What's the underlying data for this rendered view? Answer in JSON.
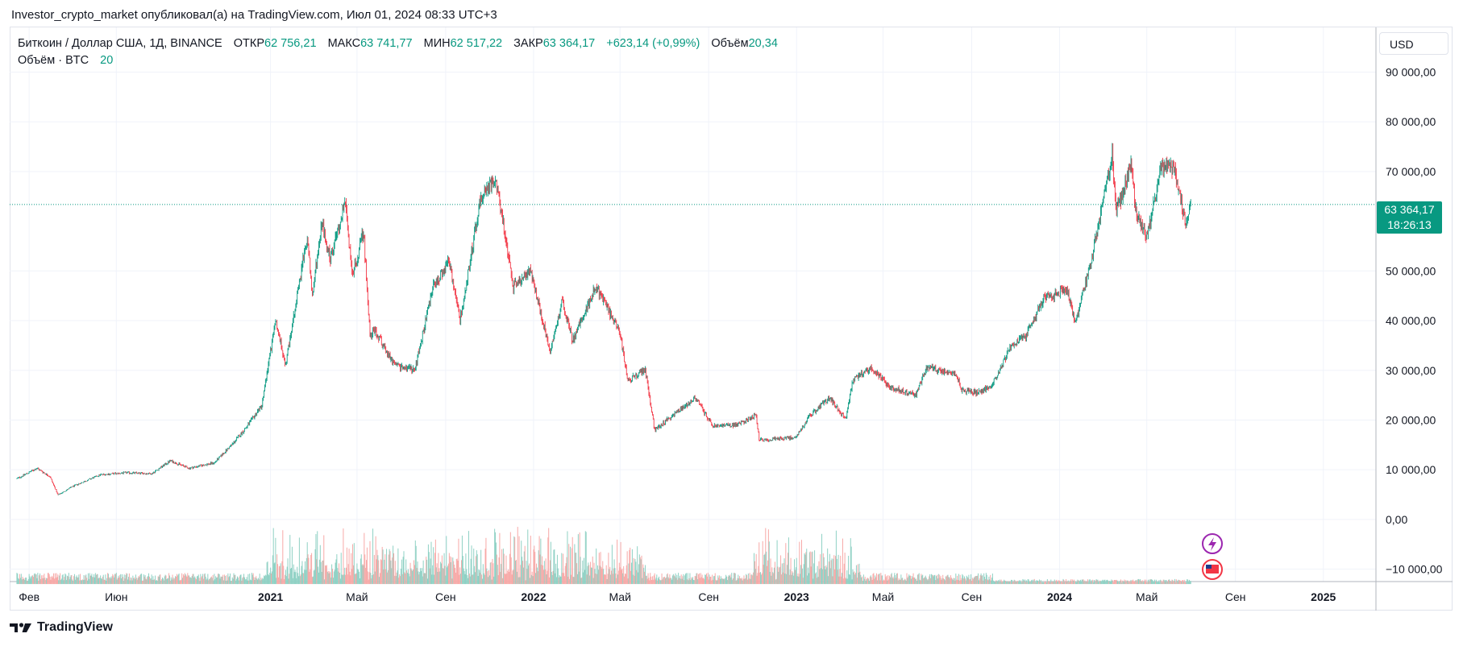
{
  "header": {
    "published_line": "Investor_crypto_market опубликовал(а) на TradingView.com, Июл 01, 2024 08:33 UTC+3"
  },
  "legend": {
    "symbol": "Биткоин / Доллар США, 1Д, BINANCE",
    "open_label": "ОТКР",
    "open_value": "62 756,21",
    "high_label": "МАКС",
    "high_value": "63 741,77",
    "low_label": "МИН",
    "low_value": "62 517,22",
    "close_label": "ЗАКР",
    "close_value": "63 364,17",
    "change_value": "+623,14 (+0,99%)",
    "volume_label": "Объём",
    "volume_value": "20,34",
    "volume_indicator_label": "Объём · BTC",
    "volume_indicator_value": "20"
  },
  "toolbar": {
    "currency": "USD"
  },
  "price_tag": {
    "price": "63 364,17",
    "countdown": "18:26:13"
  },
  "footer": {
    "brand": "TradingView"
  },
  "colors": {
    "up": "#089981",
    "down": "#f23645",
    "grid": "#f0f3fa",
    "text": "#131722",
    "vol_up": "#8fd1c4",
    "vol_down": "#f7a9a7"
  },
  "icons": {
    "event_icon": "lightning-icon",
    "country_icon": "us-flag-icon",
    "logo": "tradingview-logo-icon"
  },
  "chart_data": {
    "type": "candlestick",
    "title": "Биткоин / Доллар США, 1Д, BINANCE",
    "x_ticks": [
      {
        "date": "2020-02-01",
        "label": "Фев",
        "bold": false
      },
      {
        "date": "2020-06-01",
        "label": "Июн",
        "bold": false
      },
      {
        "date": "2021-01-01",
        "label": "2021",
        "bold": true
      },
      {
        "date": "2021-05-01",
        "label": "Май",
        "bold": false
      },
      {
        "date": "2021-09-01",
        "label": "Сен",
        "bold": false
      },
      {
        "date": "2022-01-01",
        "label": "2022",
        "bold": true
      },
      {
        "date": "2022-05-01",
        "label": "Май",
        "bold": false
      },
      {
        "date": "2022-09-01",
        "label": "Сен",
        "bold": false
      },
      {
        "date": "2023-01-01",
        "label": "2023",
        "bold": true
      },
      {
        "date": "2023-05-01",
        "label": "Май",
        "bold": false
      },
      {
        "date": "2023-09-01",
        "label": "Сен",
        "bold": false
      },
      {
        "date": "2024-01-01",
        "label": "2024",
        "bold": true
      },
      {
        "date": "2024-05-01",
        "label": "Май",
        "bold": false
      },
      {
        "date": "2024-09-01",
        "label": "Сен",
        "bold": false
      },
      {
        "date": "2025-01-01",
        "label": "2025",
        "bold": true
      }
    ],
    "x_range": [
      "2020-01-05",
      "2025-03-15"
    ],
    "y_ticks": [
      {
        "value": 90000,
        "label": "90 000,00"
      },
      {
        "value": 80000,
        "label": "80 000,00"
      },
      {
        "value": 70000,
        "label": "70 000,00"
      },
      {
        "value": 50000,
        "label": "50 000,00"
      },
      {
        "value": 40000,
        "label": "40 000,00"
      },
      {
        "value": 30000,
        "label": "30 000,00"
      },
      {
        "value": 20000,
        "label": "20 000,00"
      },
      {
        "value": 10000,
        "label": "10 000,00"
      },
      {
        "value": 0,
        "label": "0,00"
      },
      {
        "value": -10000,
        "label": "−10 000,00"
      }
    ],
    "y_range": [
      -12500,
      99000
    ],
    "current_price": 63364.17,
    "price_path": [
      [
        "2020-01-15",
        8200
      ],
      [
        "2020-02-12",
        10300
      ],
      [
        "2020-03-01",
        8600
      ],
      [
        "2020-03-12",
        4900
      ],
      [
        "2020-04-01",
        6600
      ],
      [
        "2020-05-10",
        9000
      ],
      [
        "2020-06-15",
        9400
      ],
      [
        "2020-07-20",
        9200
      ],
      [
        "2020-08-15",
        11800
      ],
      [
        "2020-09-10",
        10300
      ],
      [
        "2020-10-15",
        11400
      ],
      [
        "2020-11-10",
        15300
      ],
      [
        "2020-12-01",
        19000
      ],
      [
        "2020-12-20",
        23000
      ],
      [
        "2021-01-08",
        40000
      ],
      [
        "2021-01-22",
        31000
      ],
      [
        "2021-02-08",
        46000
      ],
      [
        "2021-02-21",
        57000
      ],
      [
        "2021-02-28",
        45000
      ],
      [
        "2021-03-13",
        60000
      ],
      [
        "2021-03-25",
        52000
      ],
      [
        "2021-04-14",
        64000
      ],
      [
        "2021-04-25",
        49000
      ],
      [
        "2021-05-10",
        58000
      ],
      [
        "2021-05-19",
        37000
      ],
      [
        "2021-05-25",
        38000
      ],
      [
        "2021-06-22",
        31000
      ],
      [
        "2021-07-20",
        30000
      ],
      [
        "2021-08-15",
        47000
      ],
      [
        "2021-09-06",
        52000
      ],
      [
        "2021-09-21",
        40000
      ],
      [
        "2021-10-20",
        65000
      ],
      [
        "2021-11-10",
        68000
      ],
      [
        "2021-12-04",
        47000
      ],
      [
        "2021-12-27",
        50000
      ],
      [
        "2022-01-24",
        34000
      ],
      [
        "2022-02-10",
        44000
      ],
      [
        "2022-02-24",
        36000
      ],
      [
        "2022-03-28",
        47000
      ],
      [
        "2022-04-30",
        38000
      ],
      [
        "2022-05-12",
        28000
      ],
      [
        "2022-06-05",
        30000
      ],
      [
        "2022-06-18",
        18000
      ],
      [
        "2022-07-05",
        20000
      ],
      [
        "2022-08-14",
        24500
      ],
      [
        "2022-09-06",
        18800
      ],
      [
        "2022-10-10",
        19000
      ],
      [
        "2022-11-06",
        21000
      ],
      [
        "2022-11-10",
        16000
      ],
      [
        "2022-12-30",
        16500
      ],
      [
        "2023-01-20",
        21000
      ],
      [
        "2023-02-16",
        24500
      ],
      [
        "2023-03-10",
        20000
      ],
      [
        "2023-03-20",
        28000
      ],
      [
        "2023-04-14",
        30500
      ],
      [
        "2023-05-12",
        26500
      ],
      [
        "2023-06-15",
        25000
      ],
      [
        "2023-07-01",
        30500
      ],
      [
        "2023-08-10",
        29500
      ],
      [
        "2023-08-18",
        26000
      ],
      [
        "2023-09-12",
        25500
      ],
      [
        "2023-10-01",
        27500
      ],
      [
        "2023-10-24",
        34500
      ],
      [
        "2023-11-15",
        37000
      ],
      [
        "2023-12-08",
        44000
      ],
      [
        "2024-01-11",
        46500
      ],
      [
        "2024-01-23",
        39500
      ],
      [
        "2024-02-14",
        52000
      ],
      [
        "2024-03-05",
        67000
      ],
      [
        "2024-03-14",
        73000
      ],
      [
        "2024-03-20",
        62000
      ],
      [
        "2024-04-09",
        71000
      ],
      [
        "2024-04-17",
        61000
      ],
      [
        "2024-05-01",
        57000
      ],
      [
        "2024-05-21",
        70500
      ],
      [
        "2024-06-07",
        71000
      ],
      [
        "2024-06-24",
        60000
      ],
      [
        "2024-07-01",
        63364
      ]
    ],
    "volume_axis": {
      "zero_value": -13000,
      "unit_per_btc": 1
    }
  }
}
